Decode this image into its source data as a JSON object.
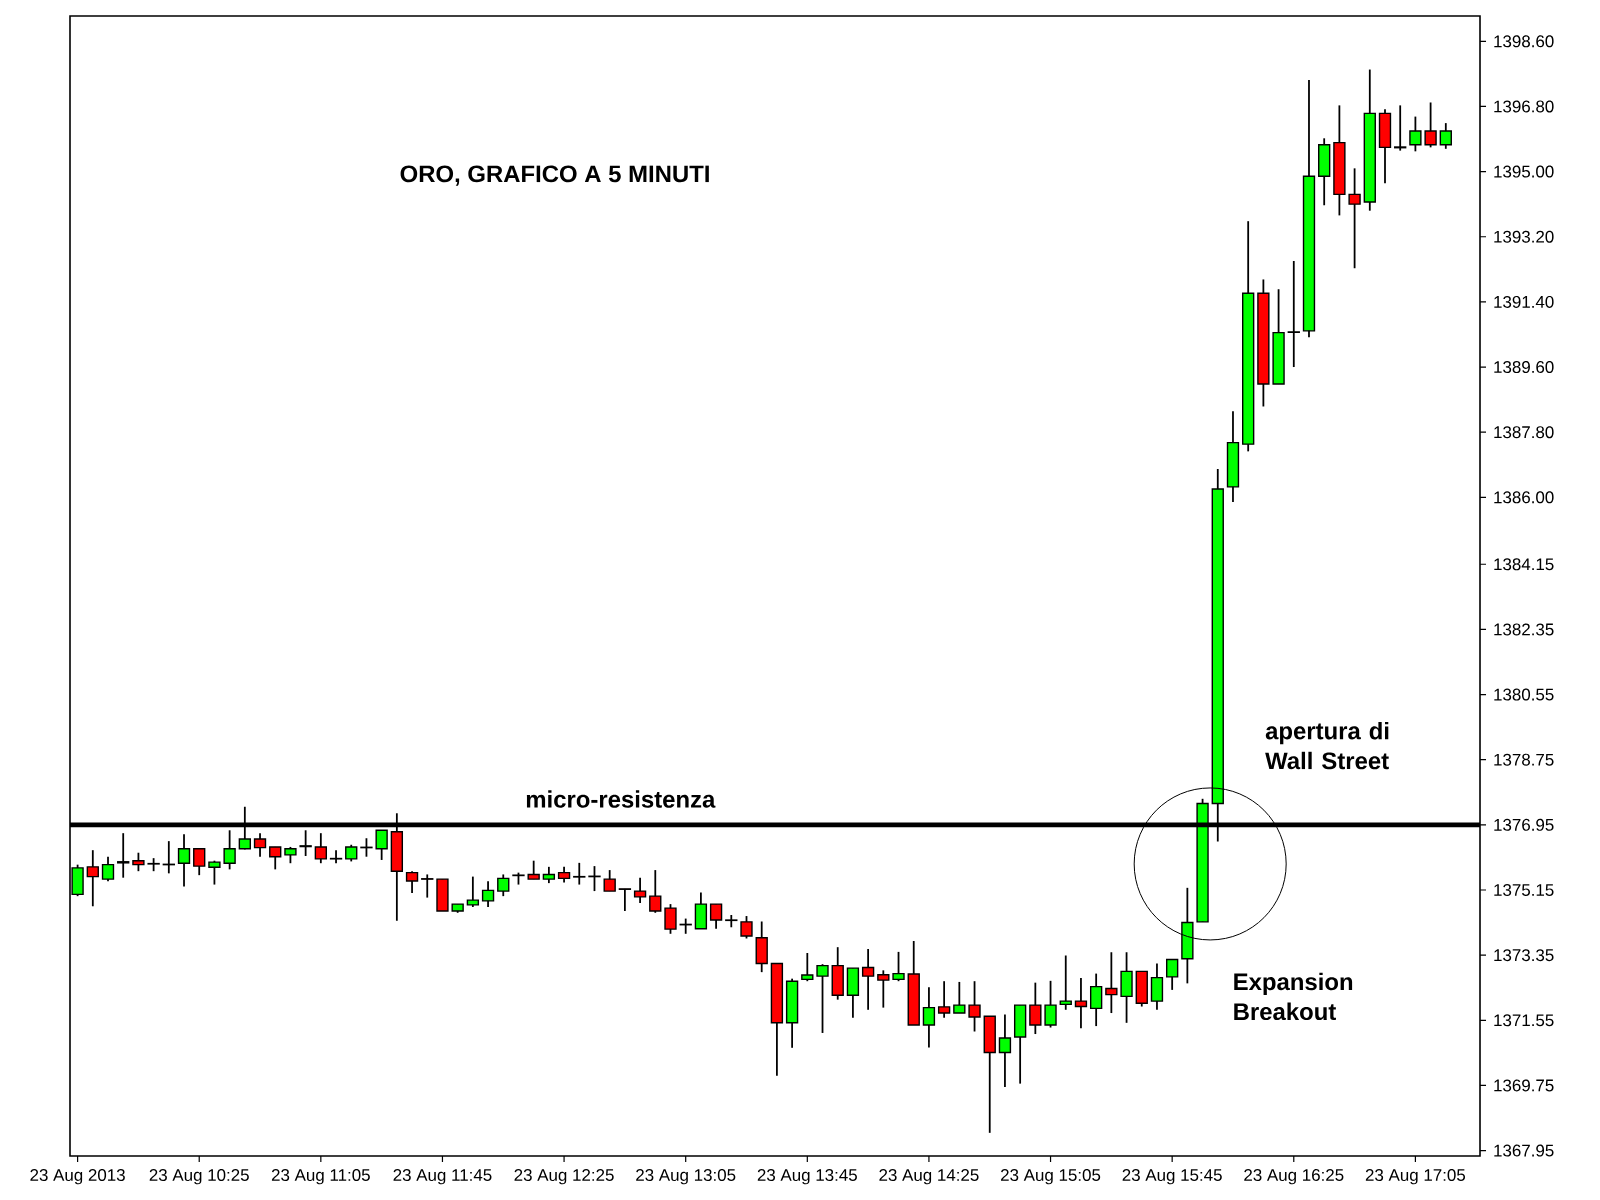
{
  "chart_data": {
    "type": "candlestick",
    "title": "ORO, GRAFICO A 5 MINUTI",
    "categories": [
      "23 Aug 2013",
      null,
      null,
      null,
      null,
      null,
      null,
      null,
      "23 Aug 10:25",
      null,
      null,
      null,
      null,
      null,
      null,
      null,
      "23 Aug 11:05",
      null,
      null,
      null,
      null,
      null,
      null,
      null,
      "23 Aug 11:45",
      null,
      null,
      null,
      null,
      null,
      null,
      null,
      "23 Aug 12:25",
      null,
      null,
      null,
      null,
      null,
      null,
      null,
      "23 Aug 13:05",
      null,
      null,
      null,
      null,
      null,
      null,
      null,
      "23 Aug 13:45",
      null,
      null,
      null,
      null,
      null,
      null,
      null,
      "23 Aug 14:25",
      null,
      null,
      null,
      null,
      null,
      null,
      null,
      "23 Aug 15:05",
      null,
      null,
      null,
      null,
      null,
      null,
      null,
      "23 Aug 15:45",
      null,
      null,
      null,
      null,
      null,
      null,
      null,
      "23 Aug 16:25",
      null,
      null,
      null,
      null,
      null,
      null,
      null,
      "23 Aug 17:05",
      null,
      null
    ],
    "ohlc": [
      [
        1375.03,
        1375.85,
        1374.98,
        1375.76
      ],
      [
        1375.79,
        1376.25,
        1374.7,
        1375.52
      ],
      [
        1375.45,
        1376.07,
        1375.39,
        1375.85
      ],
      [
        1375.9,
        1376.72,
        1375.49,
        1375.93
      ],
      [
        1375.96,
        1376.18,
        1375.67,
        1375.85
      ],
      [
        1375.87,
        1376.03,
        1375.67,
        1375.88
      ],
      [
        1375.85,
        1376.5,
        1375.61,
        1375.86
      ],
      [
        1375.89,
        1376.69,
        1375.25,
        1376.29
      ],
      [
        1376.29,
        1376.29,
        1375.56,
        1375.81
      ],
      [
        1375.78,
        1375.96,
        1375.3,
        1375.92
      ],
      [
        1375.89,
        1376.8,
        1375.72,
        1376.29
      ],
      [
        1376.29,
        1377.45,
        1376.27,
        1376.56
      ],
      [
        1376.56,
        1376.72,
        1376.07,
        1376.32
      ],
      [
        1376.34,
        1376.34,
        1375.72,
        1376.07
      ],
      [
        1376.12,
        1376.34,
        1375.89,
        1376.29
      ],
      [
        1376.35,
        1376.8,
        1376.09,
        1376.37
      ],
      [
        1376.34,
        1376.72,
        1375.89,
        1376.01
      ],
      [
        1376.01,
        1376.25,
        1375.89,
        1376.02
      ],
      [
        1376.01,
        1376.4,
        1375.94,
        1376.34
      ],
      [
        1376.32,
        1376.58,
        1376.07,
        1376.33
      ],
      [
        1376.29,
        1376.8,
        1375.98,
        1376.8
      ],
      [
        1376.76,
        1377.27,
        1374.3,
        1375.67
      ],
      [
        1375.63,
        1375.67,
        1375.07,
        1375.4
      ],
      [
        1375.46,
        1375.58,
        1374.94,
        1375.45
      ],
      [
        1375.45,
        1375.45,
        1374.57,
        1374.57
      ],
      [
        1374.57,
        1374.76,
        1374.52,
        1374.76
      ],
      [
        1374.74,
        1375.52,
        1374.68,
        1374.87
      ],
      [
        1374.85,
        1375.39,
        1374.68,
        1375.14
      ],
      [
        1375.12,
        1375.58,
        1374.98,
        1375.47
      ],
      [
        1375.55,
        1375.63,
        1375.3,
        1375.56
      ],
      [
        1375.58,
        1375.96,
        1375.45,
        1375.45
      ],
      [
        1375.45,
        1375.79,
        1375.34,
        1375.58
      ],
      [
        1375.63,
        1375.79,
        1375.36,
        1375.47
      ],
      [
        1375.52,
        1375.9,
        1375.3,
        1375.51
      ],
      [
        1375.52,
        1375.81,
        1375.12,
        1375.53
      ],
      [
        1375.45,
        1375.7,
        1375.12,
        1375.12
      ],
      [
        1375.18,
        1375.18,
        1374.57,
        1375.17
      ],
      [
        1375.12,
        1375.49,
        1374.79,
        1374.96
      ],
      [
        1374.98,
        1375.7,
        1374.52,
        1374.57
      ],
      [
        1374.65,
        1374.76,
        1373.94,
        1374.07
      ],
      [
        1374.19,
        1374.36,
        1373.94,
        1374.2
      ],
      [
        1374.08,
        1375.08,
        1374.08,
        1374.76
      ],
      [
        1374.76,
        1374.76,
        1374.08,
        1374.32
      ],
      [
        1374.32,
        1374.46,
        1374.12,
        1374.31
      ],
      [
        1374.27,
        1374.43,
        1373.81,
        1373.88
      ],
      [
        1373.83,
        1374.28,
        1372.88,
        1373.12
      ],
      [
        1373.12,
        1373.12,
        1370.02,
        1371.48
      ],
      [
        1371.48,
        1372.7,
        1370.79,
        1372.63
      ],
      [
        1372.68,
        1373.41,
        1372.63,
        1372.8
      ],
      [
        1372.77,
        1373.1,
        1371.2,
        1373.06
      ],
      [
        1373.06,
        1373.57,
        1372.12,
        1372.24
      ],
      [
        1372.24,
        1372.99,
        1371.62,
        1372.99
      ],
      [
        1373.01,
        1373.52,
        1371.84,
        1372.77
      ],
      [
        1372.81,
        1372.93,
        1371.9,
        1372.66
      ],
      [
        1372.68,
        1373.44,
        1372.63,
        1372.84
      ],
      [
        1372.83,
        1373.74,
        1371.42,
        1371.42
      ],
      [
        1371.42,
        1372.46,
        1370.8,
        1371.9
      ],
      [
        1371.92,
        1372.63,
        1371.62,
        1371.75
      ],
      [
        1371.75,
        1372.61,
        1371.75,
        1371.97
      ],
      [
        1371.97,
        1372.63,
        1371.24,
        1371.64
      ],
      [
        1371.66,
        1371.66,
        1368.44,
        1370.66
      ],
      [
        1370.66,
        1371.71,
        1369.71,
        1371.06
      ],
      [
        1371.09,
        1371.97,
        1369.8,
        1371.97
      ],
      [
        1371.97,
        1372.59,
        1371.17,
        1371.42
      ],
      [
        1371.42,
        1372.64,
        1371.35,
        1371.97
      ],
      [
        1371.99,
        1373.34,
        1371.84,
        1372.08
      ],
      [
        1372.08,
        1372.72,
        1371.33,
        1371.93
      ],
      [
        1371.88,
        1372.84,
        1371.39,
        1372.48
      ],
      [
        1372.43,
        1373.43,
        1371.75,
        1372.26
      ],
      [
        1372.21,
        1373.43,
        1371.48,
        1372.9
      ],
      [
        1372.9,
        1372.9,
        1371.93,
        1372.02
      ],
      [
        1372.08,
        1373.12,
        1371.84,
        1372.73
      ],
      [
        1372.75,
        1373.23,
        1372.39,
        1373.23
      ],
      [
        1373.25,
        1375.21,
        1372.57,
        1374.25
      ],
      [
        1374.27,
        1377.67,
        1374.27,
        1377.54
      ],
      [
        1377.54,
        1386.78,
        1376.49,
        1386.23
      ],
      [
        1386.29,
        1388.38,
        1385.87,
        1387.51
      ],
      [
        1387.47,
        1393.63,
        1387.27,
        1391.64
      ],
      [
        1391.64,
        1392.02,
        1388.51,
        1389.13
      ],
      [
        1389.13,
        1391.75,
        1389.13,
        1390.55
      ],
      [
        1390.56,
        1392.53,
        1389.6,
        1390.57
      ],
      [
        1390.6,
        1397.53,
        1390.42,
        1394.87
      ],
      [
        1394.87,
        1395.92,
        1394.07,
        1395.74
      ],
      [
        1395.8,
        1396.83,
        1393.79,
        1394.37
      ],
      [
        1394.37,
        1395.09,
        1392.33,
        1394.1
      ],
      [
        1394.16,
        1397.82,
        1393.92,
        1396.61
      ],
      [
        1396.61,
        1396.72,
        1394.68,
        1395.67
      ],
      [
        1395.68,
        1396.83,
        1395.58,
        1395.66
      ],
      [
        1395.74,
        1396.52,
        1395.56,
        1396.12
      ],
      [
        1396.12,
        1396.91,
        1395.67,
        1395.74
      ],
      [
        1395.74,
        1396.34,
        1395.63,
        1396.12
      ]
    ],
    "colors": [
      "#00ff00",
      "#ff0000",
      "#00ff00",
      "#00ff00",
      "#ff0000",
      "#00ff00",
      "#00ff00",
      "#00ff00",
      "#ff0000",
      "#00ff00",
      "#00ff00",
      "#00ff00",
      "#ff0000",
      "#ff0000",
      "#00ff00",
      "#00ff00",
      "#ff0000",
      "#00ff00",
      "#00ff00",
      "#00ff00",
      "#00ff00",
      "#ff0000",
      "#ff0000",
      "#ff0000",
      "#ff0000",
      "#00ff00",
      "#00ff00",
      "#00ff00",
      "#00ff00",
      "#00ff00",
      "#ff0000",
      "#00ff00",
      "#ff0000",
      "#ff0000",
      "#00ff00",
      "#ff0000",
      "#ff0000",
      "#ff0000",
      "#ff0000",
      "#ff0000",
      "#00ff00",
      "#00ff00",
      "#ff0000",
      "#ff0000",
      "#ff0000",
      "#ff0000",
      "#ff0000",
      "#00ff00",
      "#00ff00",
      "#00ff00",
      "#ff0000",
      "#00ff00",
      "#ff0000",
      "#ff0000",
      "#00ff00",
      "#ff0000",
      "#00ff00",
      "#ff0000",
      "#00ff00",
      "#ff0000",
      "#ff0000",
      "#00ff00",
      "#00ff00",
      "#ff0000",
      "#00ff00",
      "#00ff00",
      "#ff0000",
      "#00ff00",
      "#ff0000",
      "#00ff00",
      "#ff0000",
      "#00ff00",
      "#00ff00",
      "#00ff00",
      "#00ff00",
      "#00ff00",
      "#00ff00",
      "#00ff00",
      "#ff0000",
      "#00ff00",
      "#00ff00",
      "#00ff00",
      "#00ff00",
      "#ff0000",
      "#ff0000",
      "#00ff00",
      "#ff0000",
      "#ff0000",
      "#00ff00",
      "#ff0000",
      "#00ff00"
    ],
    "ylim": [
      1367.8,
      1399.3
    ],
    "yticks": [
      {
        "value": 1367.95,
        "label": "1367.95"
      },
      {
        "value": 1369.75,
        "label": "1369.75"
      },
      {
        "value": 1371.55,
        "label": "1371.55"
      },
      {
        "value": 1373.35,
        "label": "1373.35"
      },
      {
        "value": 1375.15,
        "label": "1375.15"
      },
      {
        "value": 1376.95,
        "label": "1376.95"
      },
      {
        "value": 1378.75,
        "label": "1378.75"
      },
      {
        "value": 1380.55,
        "label": "1380.55"
      },
      {
        "value": 1382.35,
        "label": "1382.35"
      },
      {
        "value": 1384.15,
        "label": "1384.15"
      },
      {
        "value": 1386.0,
        "label": "1386.00"
      },
      {
        "value": 1387.8,
        "label": "1387.80"
      },
      {
        "value": 1389.6,
        "label": "1389.60"
      },
      {
        "value": 1391.4,
        "label": "1391.40"
      },
      {
        "value": 1393.2,
        "label": "1393.20"
      },
      {
        "value": 1395.0,
        "label": "1395.00"
      },
      {
        "value": 1396.8,
        "label": "1396.80"
      },
      {
        "value": 1398.6,
        "label": "1398.60"
      }
    ],
    "ref_lines": [
      {
        "axis": "y",
        "value": 1376.95,
        "label": "micro-resistenza",
        "color": "#000000"
      }
    ],
    "annotations": [
      "apertura di Wall Street",
      "Expansion Breakout"
    ],
    "grid": false
  }
}
